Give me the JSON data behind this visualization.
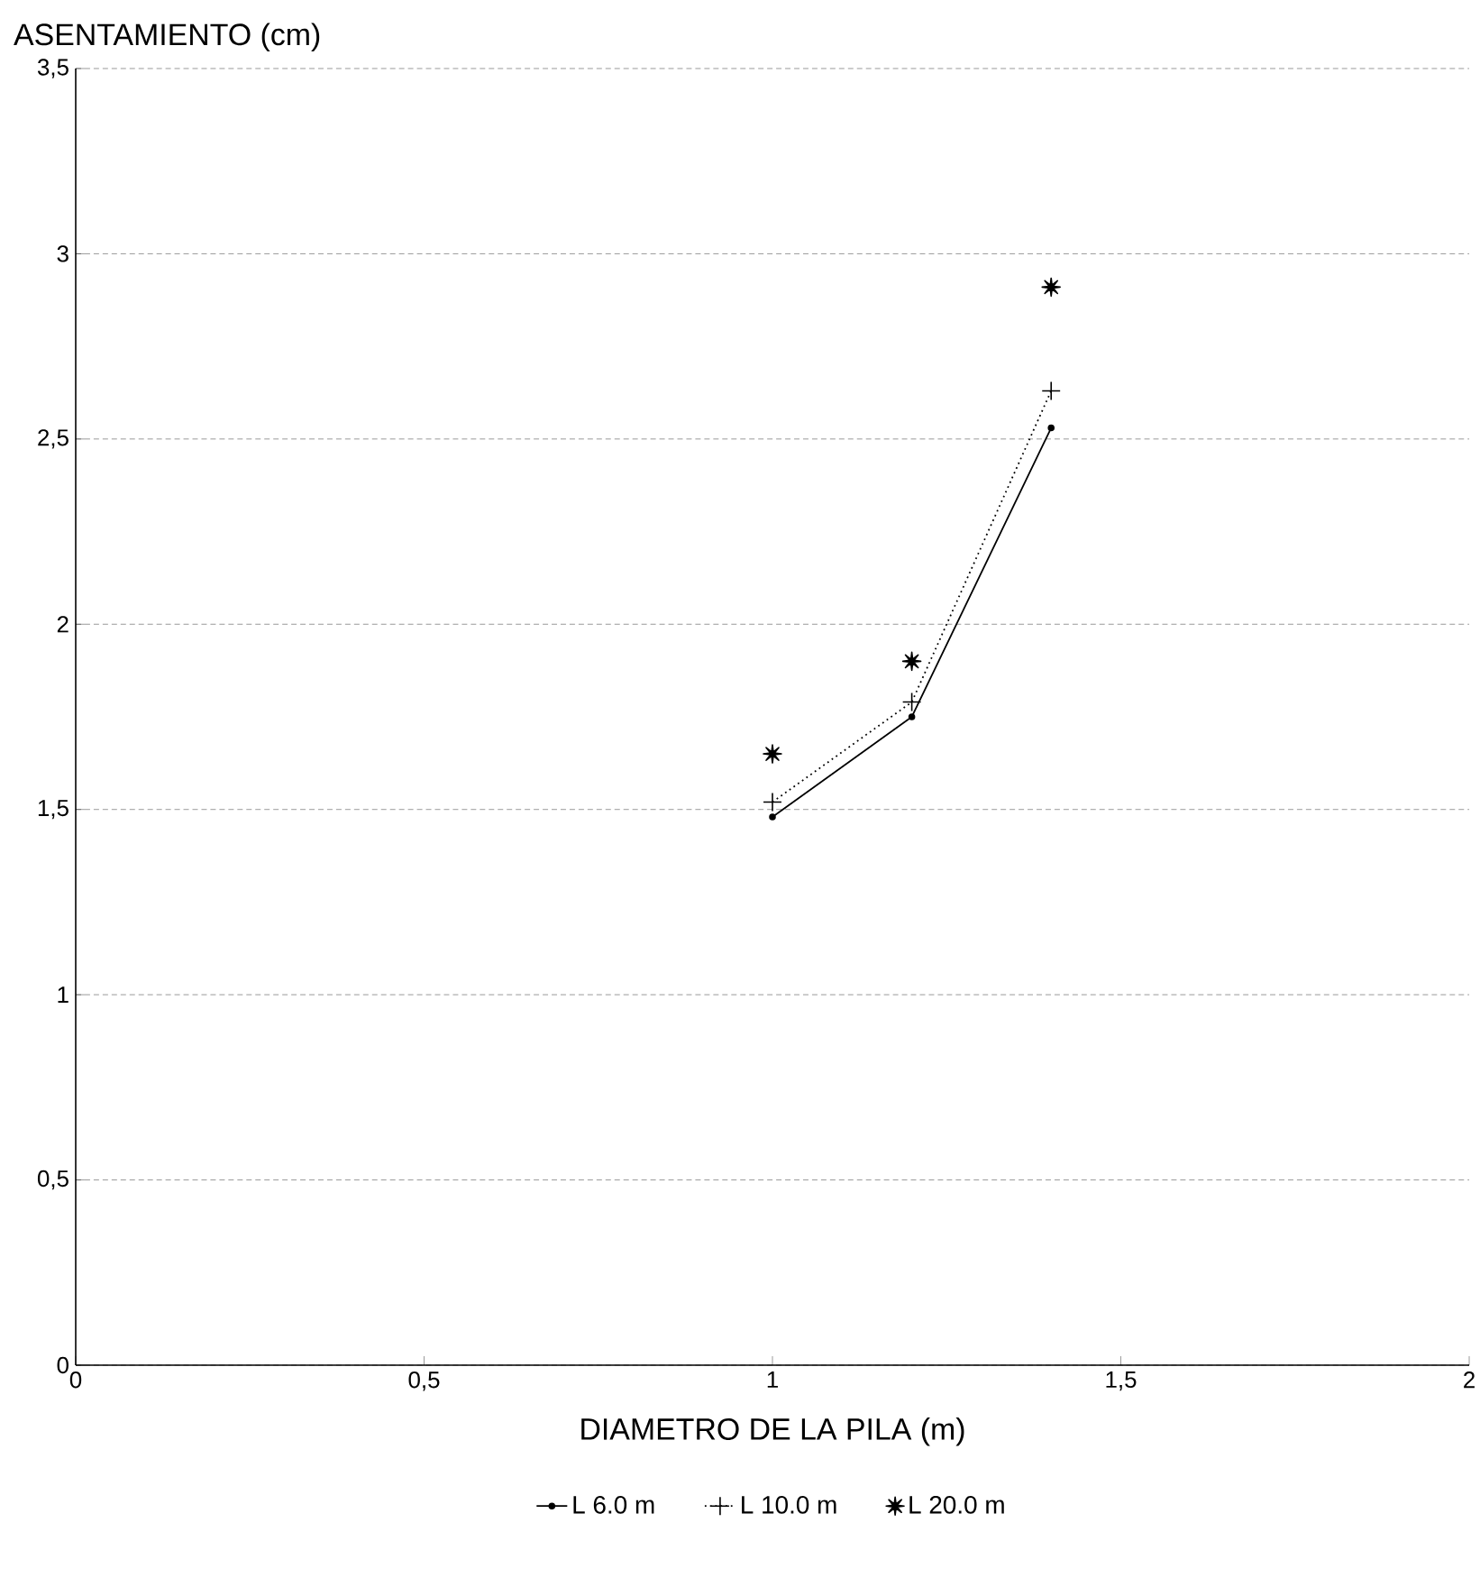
{
  "chart_data": {
    "type": "line",
    "ylabel": "ASENTAMIENTO (cm)",
    "xlabel": "DIAMETRO DE LA PILA (m)",
    "xlim": [
      0,
      2
    ],
    "xticks": [
      0,
      {
        "value": 0.5,
        "label": "0,5"
      },
      1,
      {
        "value": 1.5,
        "label": "1,5"
      },
      2
    ],
    "ylim": [
      0,
      3.5
    ],
    "yticks": [
      0,
      {
        "value": 0.5,
        "label": "0,5"
      },
      1,
      {
        "value": 1.5,
        "label": "1,5"
      },
      2,
      {
        "value": 2.5,
        "label": "2,5"
      },
      3,
      {
        "value": 3.5,
        "label": "3,5"
      }
    ],
    "grid": "y",
    "legend": "bottom",
    "x": [
      1,
      1.2,
      1.4
    ],
    "series": [
      {
        "name": "L 6.0 m",
        "color": "#000000",
        "values": [
          1.48,
          1.75,
          2.53
        ],
        "marker": "circle",
        "line_style": "solid"
      },
      {
        "name": "L 10.0 m",
        "color": "#000000",
        "values": [
          1.52,
          1.79,
          2.63
        ],
        "marker": "cross",
        "line_style": "dotted"
      },
      {
        "name": "L 20.0 m",
        "color": "#000000",
        "values": [
          1.65,
          1.9,
          2.91
        ],
        "marker": "star",
        "type": "scatter"
      }
    ]
  }
}
